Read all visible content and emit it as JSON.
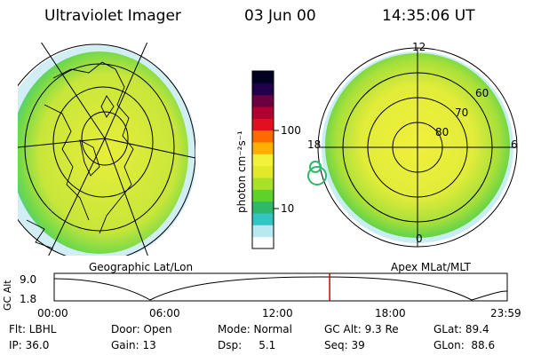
{
  "header": {
    "instrument": "Ultraviolet Imager",
    "date": "03 Jun 00",
    "time": "14:35:06 UT"
  },
  "colorbar": {
    "label": "photon cm⁻²s⁻¹",
    "ticks": [
      "100",
      "10"
    ],
    "colors": [
      "#ffffff",
      "#b8e8f0",
      "#33c4c4",
      "#2fb86a",
      "#5fd22a",
      "#a8e02a",
      "#e2e82a",
      "#f2f23a",
      "#ffb000",
      "#ff6a00",
      "#e01020",
      "#b00030",
      "#6a0040",
      "#20004a",
      "#000020"
    ]
  },
  "left_panel": {
    "caption": "Geographic Lat/Lon"
  },
  "right_panel": {
    "caption": "Apex MLat/MLT",
    "mlt_labels": {
      "top": "12",
      "left": "18",
      "right": "6",
      "bottom": "0"
    },
    "lat_labels": [
      "60",
      "70",
      "80"
    ]
  },
  "altitude_plot": {
    "ylabel": "GC Alt",
    "yticks": [
      "9.0",
      "1.8"
    ],
    "xticks": [
      "00:00",
      "06:00",
      "12:00",
      "18:00",
      "23:59"
    ],
    "marker_color": "#d00000",
    "current_time_fraction": 0.608
  },
  "info": {
    "row1": {
      "flt": "Flt: LBHL",
      "door": "Door: Open",
      "mode": "Mode: Normal",
      "gc_alt": "GC Alt: 9.3 Re",
      "glat": "GLat:  89.4"
    },
    "row2": {
      "ip": "IP: 36.0",
      "gain": "Gain: 13",
      "dsp": "Dsp:     5.1",
      "seq": "Seq: 39",
      "glon": "GLon:  88.6"
    }
  }
}
